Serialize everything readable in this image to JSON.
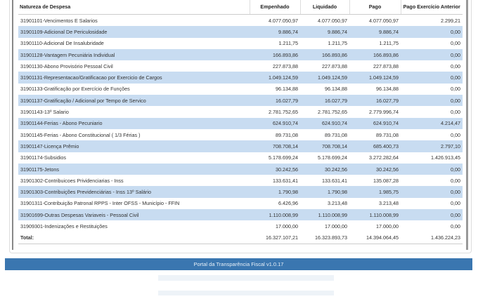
{
  "table": {
    "headers": [
      "Natureza de Despesa",
      "Empenhado",
      "Liquidado",
      "Pago",
      "Pago Exercício Anterior"
    ],
    "rows": [
      [
        "31901101-Vencimentos E Salarios",
        "4.077.050,97",
        "4.077.050,97",
        "4.077.050,97",
        "2.299,21"
      ],
      [
        "31901109-Adicional De Periculosidade",
        "9.886,74",
        "9.886,74",
        "9.886,74",
        "0,00"
      ],
      [
        "31901110-Adicional De Insalubridade",
        "1.211,75",
        "1.211,75",
        "1.211,75",
        "0,00"
      ],
      [
        "31901128-Vantagem Pecuniária Individual",
        "166.893,86",
        "166.893,86",
        "166.893,86",
        "0,00"
      ],
      [
        "31901130-Abono Provisório Pessoal Civil",
        "227.873,88",
        "227.873,88",
        "227.873,88",
        "0,00"
      ],
      [
        "31901131-Representacao/Gratificacao por Exercicio de Cargos",
        "1.049.124,59",
        "1.049.124,59",
        "1.049.124,59",
        "0,00"
      ],
      [
        "31901133-Gratificação por Exercício de Funções",
        "96.134,88",
        "96.134,88",
        "96.134,88",
        "0,00"
      ],
      [
        "31901137-Gratificação / Adicional por Tempo de Servico",
        "16.027,79",
        "16.027,79",
        "16.027,79",
        "0,00"
      ],
      [
        "31901143-13º Salario",
        "2.781.752,65",
        "2.781.752,65",
        "2.779.996,74",
        "0,00"
      ],
      [
        "31901144-Ferias - Abono Pecuniario",
        "624.910,74",
        "624.910,74",
        "624.910,74",
        "4.214,47"
      ],
      [
        "31901145-Ferias - Abono Constitucional ( 1/3 Férias )",
        "89.731,08",
        "89.731,08",
        "89.731,08",
        "0,00"
      ],
      [
        "31901147-Licença Prêmio",
        "708.708,14",
        "708.708,14",
        "685.400,73",
        "2.797,10"
      ],
      [
        "31901174-Subsidios",
        "5.178.699,24",
        "5.178.699,24",
        "3.272.282,64",
        "1.426.913,45"
      ],
      [
        "31901175-Jetons",
        "30.242,56",
        "30.242,56",
        "30.242,56",
        "0,00"
      ],
      [
        "31901302-Contribuicoes Prividenciarias - Inss",
        "133.631,41",
        "133.631,41",
        "135.087,28",
        "0,00"
      ],
      [
        "31901303-Contribuições Previdenciárias - Inss 13º Salário",
        "1.790,98",
        "1.790,98",
        "1.985,75",
        "0,00"
      ],
      [
        "31901311-Contribuição Patronal RPPS - Inter OFSS - Município - FFIN",
        "6.426,96",
        "3.213,48",
        "3.213,48",
        "0,00"
      ],
      [
        "31901699-Outras Despesas Variaveis - Pessoal Civil",
        "1.110.008,99",
        "1.110.008,99",
        "1.110.008,99",
        "0,00"
      ],
      [
        "31909301-Indenizações e Restituições",
        "17.000,00",
        "17.000,00",
        "17.000,00",
        "0,00"
      ]
    ],
    "total": [
      "Total:",
      "16.327.107,21",
      "16.323.893,73",
      "14.394.064,45",
      "1.436.224,23"
    ]
  },
  "footer": {
    "text": "Portal da Transparência Fiscal v1.0.17"
  },
  "colors": {
    "row_alt": "#c8dcf1",
    "footer_bg": "#3a76b0"
  }
}
